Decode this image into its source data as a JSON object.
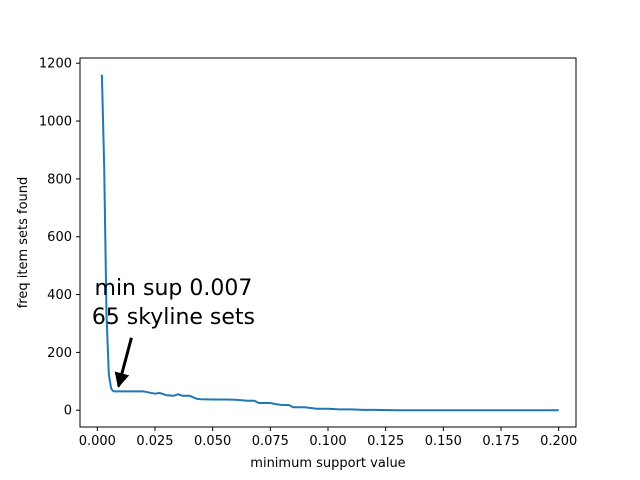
{
  "chart_data": {
    "type": "line",
    "title": "",
    "xlabel": "minimum support value",
    "ylabel": "freq item sets found",
    "xlim": [
      -0.0075,
      0.2075
    ],
    "ylim": [
      -58,
      1218
    ],
    "xticks": [
      0.0,
      0.025,
      0.05,
      0.075,
      0.1,
      0.125,
      0.15,
      0.175,
      0.2
    ],
    "xtick_labels": [
      "0.000",
      "0.025",
      "0.050",
      "0.075",
      "0.100",
      "0.125",
      "0.150",
      "0.175",
      "0.200"
    ],
    "yticks": [
      0,
      200,
      400,
      600,
      800,
      1000,
      1200
    ],
    "ytick_labels": [
      "0",
      "200",
      "400",
      "600",
      "800",
      "1000",
      "1200"
    ],
    "grid": false,
    "color": "#1f77b4",
    "series": [
      {
        "x": [
          0.002,
          0.003,
          0.004,
          0.005,
          0.006,
          0.007,
          0.008,
          0.01,
          0.015,
          0.02,
          0.022,
          0.025,
          0.027,
          0.03,
          0.033,
          0.035,
          0.037,
          0.04,
          0.043,
          0.045,
          0.05,
          0.055,
          0.06,
          0.065,
          0.068,
          0.07,
          0.075,
          0.078,
          0.08,
          0.083,
          0.085,
          0.09,
          0.095,
          0.1,
          0.105,
          0.11,
          0.115,
          0.12,
          0.13,
          0.15,
          0.17,
          0.2
        ],
        "y": [
          1160,
          840,
          330,
          125,
          75,
          65,
          65,
          65,
          65,
          65,
          62,
          57,
          60,
          52,
          50,
          55,
          50,
          50,
          40,
          38,
          37,
          37,
          36,
          33,
          33,
          25,
          25,
          20,
          18,
          18,
          10,
          10,
          5,
          5,
          3,
          3,
          1,
          1,
          0,
          0,
          0,
          0
        ]
      }
    ],
    "annotations": [
      {
        "text_line1": "min sup 0.007",
        "text_line2": "65 skyline sets",
        "point": [
          0.007,
          65
        ],
        "text_pos": [
          0.033,
          330
        ]
      }
    ]
  }
}
